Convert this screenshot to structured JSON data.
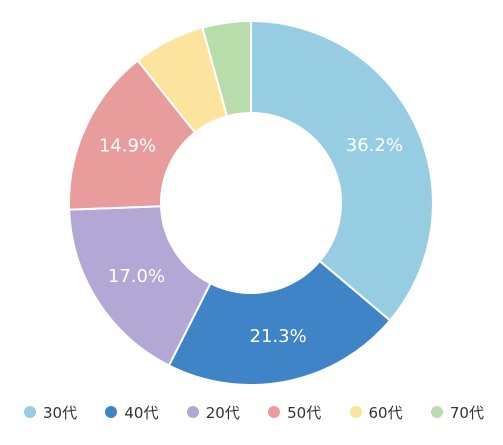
{
  "chart_data": {
    "type": "pie",
    "style": "donut",
    "title": "",
    "categories": [
      "30代",
      "40代",
      "20代",
      "50代",
      "60代",
      "70代"
    ],
    "values": [
      36.2,
      21.3,
      17.0,
      14.9,
      6.4,
      4.3
    ],
    "labels": [
      "36.2%",
      "21.3%",
      "17.0%",
      "14.9%",
      "",
      ""
    ],
    "colors": [
      "#97cde2",
      "#3f84c6",
      "#b3a7d6",
      "#e99c9c",
      "#fce39e",
      "#b8dcaa"
    ],
    "legend_position": "bottom"
  }
}
